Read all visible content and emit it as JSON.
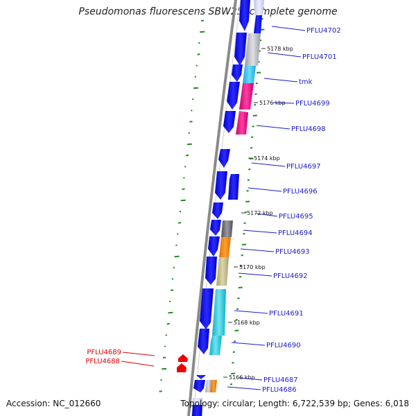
{
  "title": "Pseudomonas fluorescens SBW25, complete genome",
  "accession": "Accession: NC_012660",
  "summary": "Topology: circular; Length: 6,722,539 bp; Genes: 6,018",
  "colors": {
    "backbone": "#888888",
    "forward_gene": "#0b0bf2",
    "reverse_gene": "#0b0bf2",
    "highlight_gene": "#ee0000",
    "label_blue": "#1a1acc",
    "label_red": "#dd0000",
    "gc_skew": "#228b22"
  },
  "kbp_ticks": [
    "5178 kbp",
    "5176 kbp",
    "5174 kbp",
    "5172 kbp",
    "5170 kbp",
    "5168 kbp",
    "5166 kbp"
  ],
  "gene_labels": [
    {
      "name": "PFLU4702",
      "color": "blue"
    },
    {
      "name": "PFLU4701",
      "color": "blue"
    },
    {
      "name": "tmk",
      "color": "blue"
    },
    {
      "name": "PFLU4699",
      "color": "blue"
    },
    {
      "name": "PFLU4698",
      "color": "blue"
    },
    {
      "name": "PFLU4697",
      "color": "blue"
    },
    {
      "name": "PFLU4696",
      "color": "blue"
    },
    {
      "name": "PFLU4695",
      "color": "blue"
    },
    {
      "name": "PFLU4694",
      "color": "blue"
    },
    {
      "name": "PFLU4693",
      "color": "blue"
    },
    {
      "name": "PFLU4692",
      "color": "blue"
    },
    {
      "name": "PFLU4691",
      "color": "blue"
    },
    {
      "name": "PFLU4690",
      "color": "blue"
    },
    {
      "name": "PFLU4689",
      "color": "red"
    },
    {
      "name": "PFLU4688",
      "color": "red"
    },
    {
      "name": "PFLU4687",
      "color": "blue"
    },
    {
      "name": "PFLU4686",
      "color": "blue"
    }
  ]
}
